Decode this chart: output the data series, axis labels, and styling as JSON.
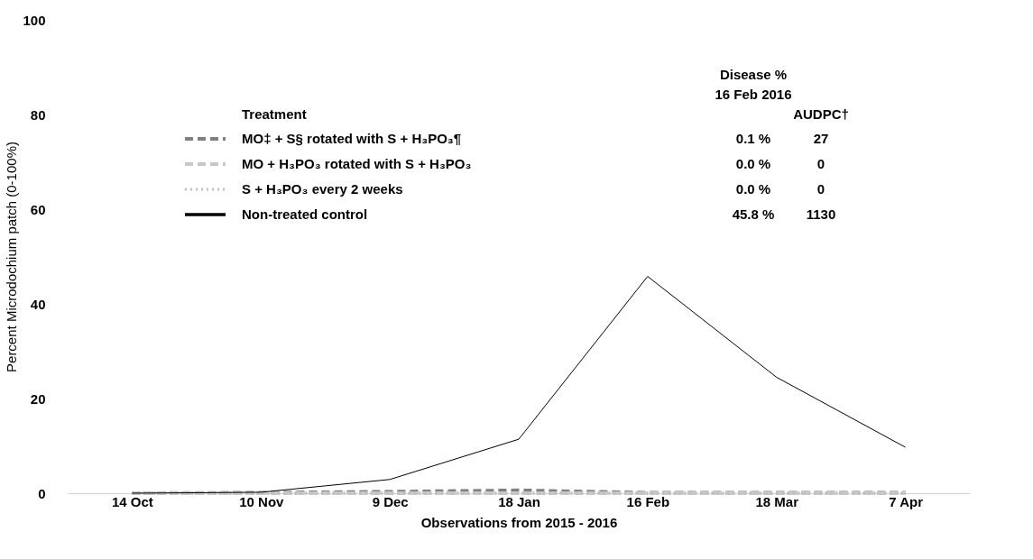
{
  "chart_data": {
    "type": "line",
    "xlabel": "Observations from 2015 - 2016",
    "ylabel": "Percent Microdochium patch (0-100%)",
    "categories": [
      "14 Oct",
      "10 Nov",
      "9 Dec",
      "18 Jan",
      "16 Feb",
      "18 Mar",
      "7 Apr"
    ],
    "ylim": [
      0,
      100
    ],
    "yticks": [
      0,
      20,
      40,
      60,
      80,
      100
    ],
    "grid": false,
    "legend": "top",
    "legend_title": "Treatment",
    "series": [
      {
        "name": "MO‡ + S§ rotated with S + H₃PO₃¶",
        "color": "#808080",
        "line_style": "dashed",
        "values": [
          0,
          0.1,
          0.3,
          0.6,
          0.1,
          0.1,
          0.1
        ]
      },
      {
        "name": "MO + H₃PO₃ rotated with S + H₃PO₃",
        "color": "#c8c8c8",
        "line_style": "dashed",
        "values": [
          0,
          0,
          0,
          0,
          0,
          0,
          0
        ]
      },
      {
        "name": "S + H₃PO₃ every 2 weeks",
        "color": "#c0c0c0",
        "line_style": "dotted",
        "values": [
          0,
          0,
          0,
          0,
          0,
          0,
          0
        ]
      },
      {
        "name": "Non-treated control",
        "color": "#000000",
        "line_style": "solid",
        "values": [
          0,
          0.2,
          2.9,
          11.4,
          45.8,
          24.5,
          9.7
        ]
      }
    ],
    "annotations": [
      "Disease %",
      "16 Feb 2016",
      "AUDPC†",
      "0.1 %",
      "27",
      "0.0 %",
      "0",
      "0.0 %",
      "0",
      "45.8 %",
      "1130"
    ]
  }
}
